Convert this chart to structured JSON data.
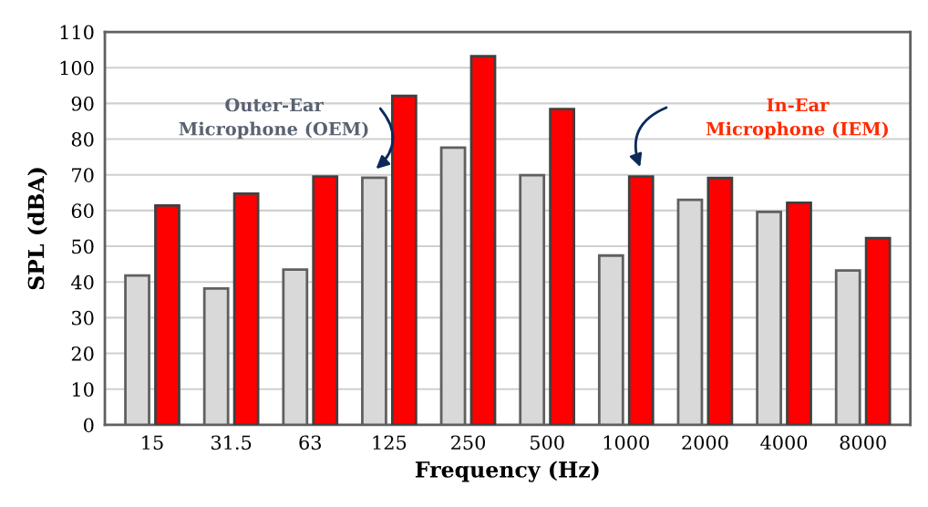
{
  "chart_data": {
    "type": "bar",
    "xlabel": "Frequency (Hz)",
    "ylabel": "SPL (dBA)",
    "categories": [
      "15",
      "31.5",
      "63",
      "125",
      "250",
      "500",
      "1000",
      "2000",
      "4000",
      "8000"
    ],
    "series": [
      {
        "name": "Outer-Ear\nMicrophone (OEM)",
        "color": "#d9d9d9",
        "values": [
          41.8,
          38.2,
          43.5,
          69.2,
          77.6,
          69.9,
          47.4,
          63.0,
          59.6,
          43.2
        ]
      },
      {
        "name": "In-Ear\nMicrophone (IEM)",
        "color": "#ff0000",
        "values": [
          61.4,
          64.7,
          69.5,
          92.1,
          103.2,
          88.4,
          69.5,
          69.1,
          62.2,
          52.3
        ]
      }
    ],
    "ylim": [
      0,
      110
    ],
    "yticks": [
      0,
      10,
      20,
      30,
      40,
      50,
      60,
      70,
      80,
      90,
      100,
      110
    ],
    "grid": "y",
    "legend": false
  }
}
